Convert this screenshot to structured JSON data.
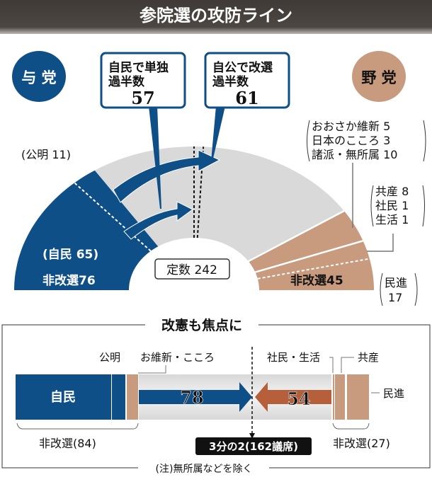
{
  "title": "参院選の攻防ライン",
  "colors": {
    "ruling": "#0d4f86",
    "opposition": "#c89a7e",
    "contested": "#d9d9d9",
    "header": "#4a4440",
    "orange_arrow": "#b5603a"
  },
  "chart_data": [
    {
      "type": "pie",
      "subtype": "semicircle",
      "total_label": "定数 242",
      "total": 242,
      "ruling_badge": "与 党",
      "opposition_badge": "野 党",
      "segments": [
        {
          "name": "自民",
          "label": "(自民 65)",
          "value": 65,
          "group": "ruling_noncontested"
        },
        {
          "name": "公明",
          "label": "(公明 11)",
          "value": 11,
          "group": "ruling_noncontested"
        },
        {
          "name": "改選",
          "value": 121,
          "group": "contested"
        },
        {
          "name": "おおさか維新・日本のこころ・諸派・無所属",
          "value": 18,
          "group": "opposition_noncontested"
        },
        {
          "name": "共産・社民・生活",
          "value": 10,
          "group": "opposition_noncontested"
        },
        {
          "name": "民進",
          "value": 17,
          "group": "opposition_noncontested"
        }
      ],
      "ruling_noncontested_label": "非改選76",
      "opposition_noncontested_label": "非改選45",
      "callouts": [
        {
          "line1": "自民で単独",
          "line2": "過半数",
          "value": "57"
        },
        {
          "line1": "自公で改選",
          "line2": "過半数",
          "value": "61"
        }
      ],
      "opposition_breakdown_1": [
        "おおさか維新 5",
        "日本のこころ 3",
        "諸派・無所属 10"
      ],
      "opposition_breakdown_2": [
        "共産 8",
        "社民 1",
        "生活 1"
      ],
      "minshin_label": [
        "民進",
        "17"
      ]
    },
    {
      "type": "bar",
      "subtype": "stacked-horizontal",
      "title": "改憲も焦点に",
      "labels": {
        "komei": "公明",
        "ishin": "お維新・こころ",
        "shamin": "社民・生活",
        "kyosan": "共産",
        "minshin": "民進",
        "jimin": "自民"
      },
      "ruling_needed": "78",
      "opposition_needed": "54",
      "ruling_noncontested": "非改選(84)",
      "opposition_noncontested": "非改選(27)",
      "threshold_label": "3分の2(162議席)",
      "note": "(注)無所属などを除く"
    }
  ]
}
